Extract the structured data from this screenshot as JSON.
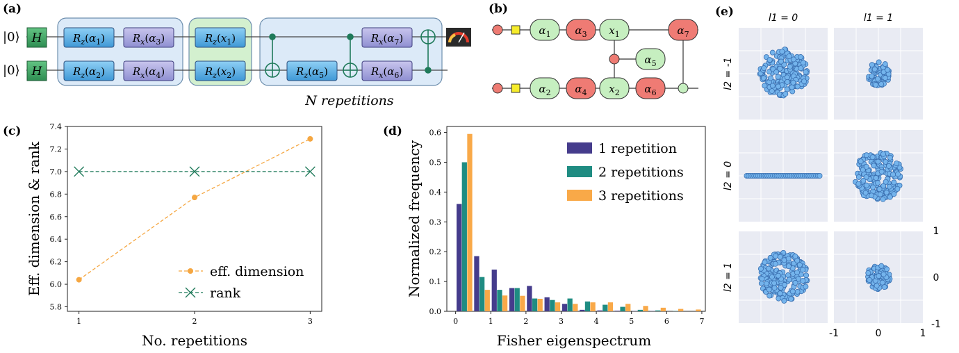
{
  "panels": {
    "a": "(a)",
    "b": "(b)",
    "c": "(c)",
    "d": "(d)",
    "e": "(e)"
  },
  "circuit": {
    "ket": "|0⟩",
    "h": "H",
    "gates_layer1": [
      {
        "axis": "z",
        "param": "1"
      },
      {
        "axis": "x",
        "param": "3"
      },
      {
        "axis": "z",
        "param": "2"
      },
      {
        "axis": "x",
        "param": "4"
      }
    ],
    "gates_encoding": [
      {
        "axis": "z",
        "param": "x",
        "sub": "1"
      },
      {
        "axis": "z",
        "param": "x",
        "sub": "2"
      }
    ],
    "gates_layer2": [
      {
        "axis": "x",
        "param": "7"
      },
      {
        "axis": "z",
        "param": "5"
      },
      {
        "axis": "x",
        "param": "6"
      }
    ],
    "repetitions_label": "N repetitions"
  },
  "graph": {
    "nodes": [
      "α1",
      "α3",
      "x1",
      "α7",
      "α5",
      "α2",
      "α4",
      "x2",
      "α6"
    ]
  },
  "chart_c": {
    "chart_data": {
      "type": "line",
      "x": [
        1,
        2,
        3
      ],
      "series": [
        {
          "name": "eff. dimension",
          "values": [
            6.04,
            6.77,
            7.29
          ],
          "color": "#f5a742",
          "marker": "circle"
        },
        {
          "name": "rank",
          "values": [
            7.0,
            7.0,
            7.0
          ],
          "color": "#1f7a5a",
          "marker": "x"
        }
      ],
      "xlabel": "No. repetitions",
      "ylabel": "Eff. dimension & rank",
      "xlim": [
        0.9,
        3.1
      ],
      "ylim": [
        5.76,
        7.4
      ],
      "yticks": [
        "5.8",
        "6.0",
        "6.2",
        "6.4",
        "6.6",
        "6.8",
        "7.0",
        "7.2",
        "7.4"
      ],
      "xticks": [
        "1",
        "2",
        "3"
      ],
      "legend": "bottom-right"
    }
  },
  "chart_d": {
    "chart_data": {
      "type": "bar",
      "bin_centers": [
        0.25,
        0.75,
        1.25,
        1.75,
        2.25,
        2.75,
        3.25,
        3.75,
        4.25,
        4.75,
        5.25,
        5.75,
        6.25,
        6.75
      ],
      "series": [
        {
          "name": "1 repetition",
          "color": "#453c8c",
          "values": [
            0.36,
            0.185,
            0.14,
            0.078,
            0.085,
            0.047,
            0.025,
            0.005,
            0.003,
            0.002,
            0.001,
            0.001,
            0.0,
            0.0
          ]
        },
        {
          "name": "2 repetitions",
          "color": "#1f8c82",
          "values": [
            0.5,
            0.115,
            0.072,
            0.078,
            0.043,
            0.038,
            0.043,
            0.033,
            0.022,
            0.015,
            0.005,
            0.003,
            0.001,
            0.0
          ]
        },
        {
          "name": "3 repetitions",
          "color": "#f9a948",
          "values": [
            0.595,
            0.072,
            0.053,
            0.052,
            0.042,
            0.03,
            0.025,
            0.03,
            0.03,
            0.025,
            0.018,
            0.012,
            0.008,
            0.006
          ]
        }
      ],
      "xlabel": "Fisher eigenspectrum",
      "ylabel": "Normalized frequency",
      "xlim": [
        -0.25,
        7.1
      ],
      "ylim": [
        0,
        0.62
      ],
      "xticks": [
        "0",
        "1",
        "2",
        "3",
        "4",
        "5",
        "6",
        "7"
      ],
      "yticks": [
        "0.0",
        "0.1",
        "0.2",
        "0.3",
        "0.4",
        "0.5",
        "0.6"
      ],
      "legend": "top-right"
    }
  },
  "chart_e": {
    "chart_data": {
      "type": "scatter",
      "col_labels": [
        "l1 = 0",
        "l1 = 1"
      ],
      "row_labels": [
        "l2 = -1",
        "l2 = 0",
        "l2 = 1"
      ],
      "cells": [
        {
          "row": 0,
          "col": 0,
          "shape": "disc",
          "radius": 0.55
        },
        {
          "row": 0,
          "col": 1,
          "shape": "disc",
          "radius": 0.27
        },
        {
          "row": 1,
          "col": 0,
          "shape": "line",
          "radius": 0.82
        },
        {
          "row": 1,
          "col": 1,
          "shape": "disc",
          "radius": 0.55
        },
        {
          "row": 2,
          "col": 0,
          "shape": "disc",
          "radius": 0.55
        },
        {
          "row": 2,
          "col": 1,
          "shape": "disc",
          "radius": 0.27
        }
      ],
      "xlim": [
        -1,
        1
      ],
      "ylim": [
        -1,
        1
      ],
      "xticks": [
        "-1",
        "0",
        "1"
      ],
      "yticks": [
        "1",
        "0",
        "-1"
      ],
      "point_color": "#74b4ec",
      "edge_color": "#3a6fb0",
      "background": "#e9ebf3"
    }
  }
}
